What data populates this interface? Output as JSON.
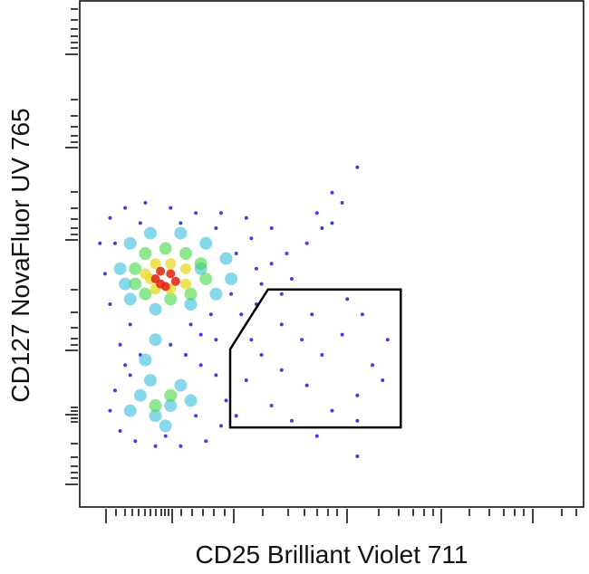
{
  "chart_data": {
    "type": "scatter",
    "x_label": "CD25 Brilliant Violet 711",
    "y_label": "CD127 NovaFluor UV 765",
    "xlim": [
      0,
      100
    ],
    "ylim": [
      0,
      100
    ],
    "series": [
      {
        "color": "#2a2ad8",
        "x": [
          4,
          6,
          9,
          13,
          18,
          23,
          28,
          33,
          38,
          41,
          42,
          40,
          36,
          30,
          26,
          22,
          10,
          6,
          5,
          7,
          12,
          20,
          27,
          34,
          38,
          35,
          31,
          45,
          48,
          50,
          52,
          55,
          50,
          47,
          8,
          12,
          18,
          24,
          9,
          21,
          27,
          7,
          6,
          8,
          11,
          15,
          20,
          25,
          28,
          29,
          27,
          24,
          10,
          17,
          23,
          32,
          35,
          40,
          44,
          48,
          52,
          56,
          58,
          55,
          50,
          45,
          40,
          36,
          33,
          38,
          42,
          47,
          55,
          60,
          53,
          31,
          34,
          46,
          61,
          55
        ],
        "values": [
          52,
          57,
          59,
          60,
          59,
          58,
          58,
          57,
          55,
          50,
          45,
          42,
          44,
          42,
          38,
          36,
          36,
          40,
          46,
          52,
          56,
          56,
          55,
          53,
          48,
          47,
          50,
          52,
          55,
          56,
          60,
          67,
          62,
          58,
          32,
          30,
          32,
          34,
          28,
          30,
          33,
          23,
          19,
          15,
          13,
          12,
          12,
          13,
          16,
          21,
          26,
          28,
          26,
          14,
          18,
          38,
          40,
          36,
          33,
          30,
          34,
          38,
          28,
          22,
          19,
          24,
          27,
          30,
          25,
          20,
          17,
          14,
          17,
          25,
          41,
          18,
          33,
          38,
          33,
          10
        ]
      },
      {
        "color": "#22b8d8",
        "x": [
          8,
          10,
          14,
          20,
          25,
          29,
          30,
          27,
          22,
          15,
          10,
          24,
          9,
          15,
          13,
          12,
          15,
          18,
          20,
          14,
          17,
          10,
          22
        ],
        "values": [
          47,
          52,
          54,
          54,
          52,
          49,
          45,
          42,
          40,
          39,
          41,
          47,
          44,
          33,
          29,
          22,
          18,
          20,
          24,
          25,
          16,
          19,
          21
        ]
      },
      {
        "color": "#44d844",
        "x": [
          11,
          13,
          17,
          21,
          24,
          25,
          22,
          18,
          13,
          11,
          15,
          18
        ],
        "values": [
          47,
          50,
          51,
          50,
          48,
          45,
          42,
          41,
          42,
          44,
          20,
          22
        ]
      },
      {
        "color": "#e8d820",
        "x": [
          13,
          15,
          18,
          21,
          21,
          18,
          15,
          14
        ],
        "values": [
          46,
          48,
          48,
          47,
          44,
          43,
          43,
          45
        ]
      },
      {
        "color": "#e02010",
        "x": [
          15,
          16,
          18,
          19,
          17,
          16
        ],
        "values": [
          45,
          46.5,
          46,
          44.5,
          43.5,
          44
        ]
      }
    ],
    "gate": {
      "color": "#000000",
      "x": [
        29.8,
        29.8,
        32.7,
        37.3,
        63.6,
        63.6
      ],
      "y": [
        15.7,
        31.1,
        35.7,
        42.9,
        42.9,
        15.7
      ]
    }
  }
}
